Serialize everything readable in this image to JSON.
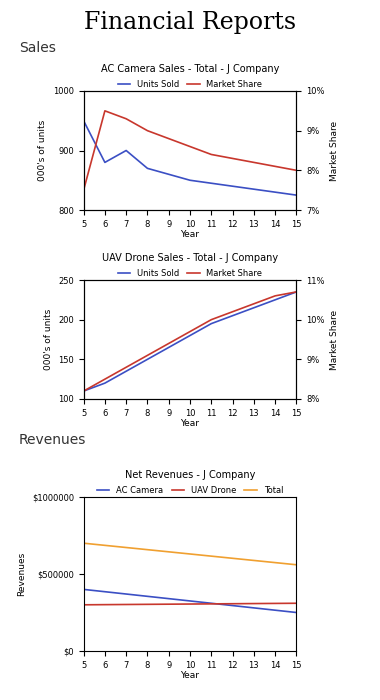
{
  "title": "Financial Reports",
  "sections": [
    "Sales",
    "Revenues"
  ],
  "chart_data": [
    {
      "type": "line",
      "title": "AC Camera Sales - Total - J Company",
      "x": [
        5,
        6,
        7,
        8,
        9,
        10,
        11,
        12,
        13,
        14,
        15
      ],
      "xlabel": "Year",
      "ylabel": "000's of units",
      "y2label": "Market Share",
      "xlim": [
        5,
        15
      ],
      "xticks": [
        5,
        6,
        7,
        8,
        9,
        10,
        11,
        12,
        13,
        14,
        15
      ],
      "ylim": [
        800,
        1000
      ],
      "yticks": [
        800,
        900,
        1000
      ],
      "y2lim": [
        7,
        10
      ],
      "y2ticks": [
        {
          "value": 7,
          "label": "7%"
        },
        {
          "value": 8,
          "label": "8%"
        },
        {
          "value": 9,
          "label": "9%"
        },
        {
          "value": 10,
          "label": "10%"
        }
      ],
      "legend": "top",
      "series": [
        {
          "name": "Units Sold",
          "color": "#3b4fc4",
          "values": [
            950,
            880,
            900,
            870,
            860,
            850,
            845,
            840,
            835,
            830,
            825
          ]
        },
        {
          "name": "Market Share",
          "color": "#c8372d",
          "axis": "y2",
          "values": [
            7.5,
            9.5,
            9.3,
            9.0,
            8.8,
            8.6,
            8.4,
            8.3,
            8.2,
            8.1,
            8.0
          ]
        }
      ]
    },
    {
      "type": "line",
      "title": "UAV Drone Sales - Total - J Company",
      "x": [
        5,
        6,
        7,
        8,
        9,
        10,
        11,
        12,
        13,
        14,
        15
      ],
      "xlabel": "Year",
      "ylabel": "000's of units",
      "y2label": "Market Share",
      "xlim": [
        5,
        15
      ],
      "xticks": [
        5,
        6,
        7,
        8,
        9,
        10,
        11,
        12,
        13,
        14,
        15
      ],
      "ylim": [
        100,
        250
      ],
      "yticks": [
        100,
        150,
        200,
        250
      ],
      "y2lim": [
        8,
        11
      ],
      "y2ticks": [
        {
          "value": 8,
          "label": "8%"
        },
        {
          "value": 9,
          "label": "9%"
        },
        {
          "value": 10,
          "label": "10%"
        },
        {
          "value": 11,
          "label": "11%"
        }
      ],
      "legend": "top",
      "series": [
        {
          "name": "Units Sold",
          "color": "#3b4fc4",
          "values": [
            110,
            120,
            135,
            150,
            165,
            180,
            195,
            205,
            215,
            225,
            235
          ]
        },
        {
          "name": "Market Share",
          "color": "#c8372d",
          "axis": "y2",
          "values": [
            8.2,
            8.5,
            8.8,
            9.1,
            9.4,
            9.7,
            10.0,
            10.2,
            10.4,
            10.6,
            10.7
          ]
        }
      ]
    },
    {
      "type": "line",
      "title": "Net Revenues - J Company",
      "x": [
        5,
        6,
        7,
        8,
        9,
        10,
        11,
        12,
        13,
        14,
        15
      ],
      "xlabel": "Year",
      "ylabel": "Revenues",
      "xlim": [
        5,
        15
      ],
      "xticks": [
        5,
        6,
        7,
        8,
        9,
        10,
        11,
        12,
        13,
        14,
        15
      ],
      "ylim": [
        0,
        1000000
      ],
      "yticks": [
        {
          "value": 0,
          "label": "$0"
        },
        {
          "value": 500000,
          "label": "$500000"
        },
        {
          "value": 1000000,
          "label": "$1000000"
        }
      ],
      "legend": "top",
      "series": [
        {
          "name": "AC Camera",
          "color": "#3b4fc4",
          "values": [
            400000,
            385000,
            370000,
            355000,
            340000,
            325000,
            310000,
            295000,
            280000,
            265000,
            250000
          ]
        },
        {
          "name": "UAV Drone",
          "color": "#c8372d",
          "values": [
            300000,
            301000,
            302000,
            303000,
            304000,
            305000,
            306000,
            307000,
            308000,
            309000,
            310000
          ]
        },
        {
          "name": "Total",
          "color": "#f0a030",
          "values": [
            700000,
            686000,
            672000,
            658000,
            644000,
            630000,
            616000,
            602000,
            588000,
            574000,
            560000
          ]
        }
      ]
    }
  ]
}
